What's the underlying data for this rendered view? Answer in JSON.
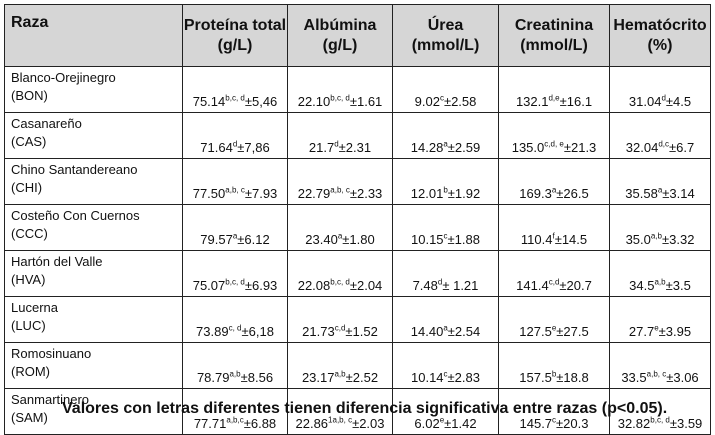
{
  "table": {
    "headers": [
      {
        "line1": "Raza",
        "line2": ""
      },
      {
        "line1": "Proteína total",
        "line2": "(g/L)"
      },
      {
        "line1": "Albúmina",
        "line2": "(g/L)"
      },
      {
        "line1": "Úrea",
        "line2": "(mmol/L)"
      },
      {
        "line1": "Creatinina",
        "line2": "(mmol/L)"
      },
      {
        "line1": "Hematócrito",
        "line2": "(%)"
      }
    ],
    "rows": [
      {
        "name": "Blanco-Orejinegro",
        "code": "(BON)",
        "cells": [
          {
            "v": "75.14",
            "s": "b,c, d",
            "e": "±5,46"
          },
          {
            "v": "22.10",
            "s": "b,c, d",
            "e": "±1.61"
          },
          {
            "v": "9.02",
            "s": "c",
            "e": "±2.58"
          },
          {
            "v": "132.1",
            "s": "d,e",
            "e": "±16.1"
          },
          {
            "v": "31.04",
            "s": "d",
            "e": "±4.5"
          }
        ]
      },
      {
        "name": "Casanareño",
        "code": "(CAS)",
        "cells": [
          {
            "v": "71.64",
            "s": "d",
            "e": "±7,86"
          },
          {
            "v": "21.7",
            "s": "d",
            "e": "±2.31"
          },
          {
            "v": "14.28",
            "s": "a",
            "e": "±2.59"
          },
          {
            "v": "135.0",
            "s": "c,d, e",
            "e": "±21.3"
          },
          {
            "v": "32.04",
            "s": "d,c",
            "e": "±6.7"
          }
        ]
      },
      {
        "name": "Chino Santandereano",
        "code": "(CHI)",
        "cells": [
          {
            "v": "77.50",
            "s": "a,b, c",
            "e": "±7.93"
          },
          {
            "v": "22.79",
            "s": "a,b, c",
            "e": "±2.33"
          },
          {
            "v": "12.01",
            "s": "b",
            "e": "±1.92"
          },
          {
            "v": "169.3",
            "s": "a",
            "e": "±26.5"
          },
          {
            "v": "35.58",
            "s": "a",
            "e": "±3.14"
          }
        ]
      },
      {
        "name": "Costeño Con Cuernos",
        "code": "(CCC)",
        "cells": [
          {
            "v": "79.57",
            "s": "a",
            "e": "±6.12"
          },
          {
            "v": "23.40",
            "s": "a",
            "e": "±1.80"
          },
          {
            "v": "10.15",
            "s": "c",
            "e": "±1.88"
          },
          {
            "v": "110.4",
            "s": "f",
            "e": "±14.5"
          },
          {
            "v": "35.0",
            "s": "a,b",
            "e": "±3.32"
          }
        ]
      },
      {
        "name": "Hartón del Valle",
        "code": "(HVA)",
        "cells": [
          {
            "v": "75.07",
            "s": "b,c, d",
            "e": "±6.93"
          },
          {
            "v": "22.08",
            "s": "b,c, d",
            "e": "±2.04"
          },
          {
            "v": "7.48",
            "s": "d",
            "e": "± 1.21"
          },
          {
            "v": "141.4",
            "s": "c,d",
            "e": "±20.7"
          },
          {
            "v": "34.5",
            "s": "a,b",
            "e": "±3.5"
          }
        ]
      },
      {
        "name": "Lucerna",
        "code": "(LUC)",
        "cells": [
          {
            "v": "73.89",
            "s": "c, d",
            "e": "±6,18"
          },
          {
            "v": "21.73",
            "s": "c,d",
            "e": "±1.52"
          },
          {
            "v": "14.40",
            "s": "a",
            "e": "±2.54"
          },
          {
            "v": "127.5",
            "s": "e",
            "e": "±27.5"
          },
          {
            "v": "27.7",
            "s": "e",
            "e": "±3.95"
          }
        ]
      },
      {
        "name": "Romosinuano",
        "code": "(ROM)",
        "cells": [
          {
            "v": "78.79",
            "s": "a,b",
            "e": "±8.56"
          },
          {
            "v": "23.17",
            "s": "a,b",
            "e": "±2.52"
          },
          {
            "v": "10.14",
            "s": "c",
            "e": "±2.83"
          },
          {
            "v": "157.5",
            "s": "b",
            "e": "±18.8"
          },
          {
            "v": "33.5",
            "s": "a,b, c",
            "e": "±3.06"
          }
        ]
      },
      {
        "name": "Sanmartinero",
        "code": "(SAM)",
        "cells": [
          {
            "v": "77.71",
            "s": "a,b,c",
            "e": "±6.88"
          },
          {
            "v": "22.86",
            "s": "1a,b, c",
            "e": "±2.03"
          },
          {
            "v": "6.02",
            "s": "e",
            "e": "±1.42"
          },
          {
            "v": "145.7",
            "s": "c",
            "e": "±20.3"
          },
          {
            "v": "32.82",
            "s": "b,c, d",
            "e": "±3.59"
          }
        ]
      }
    ]
  },
  "footnote": "Valores con letras diferentes tienen diferencia significativa entre razas (p<0.05)."
}
